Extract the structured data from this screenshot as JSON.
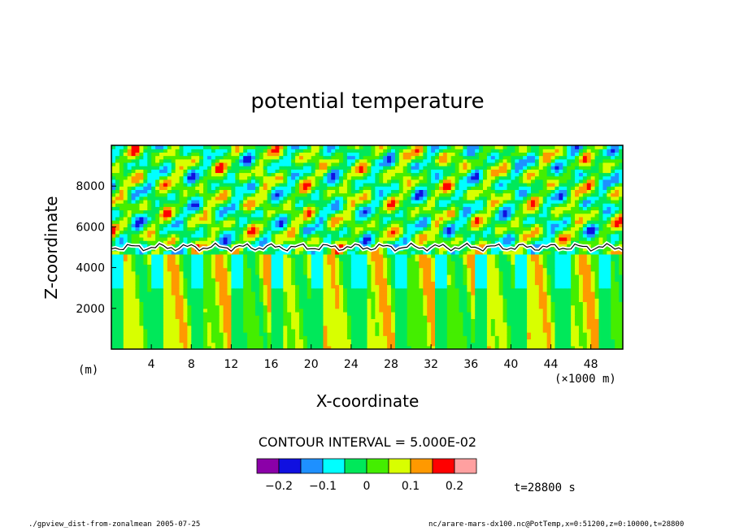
{
  "chart_data": {
    "type": "heatmap",
    "title": "potential temperature",
    "xlabel": "X-coordinate",
    "ylabel": "Z-coordinate",
    "x_unit": "(×1000 m)",
    "y_unit": "(m)",
    "xlim": [
      0,
      51.2
    ],
    "ylim": [
      0,
      10000
    ],
    "x_ticks": [
      4,
      8,
      12,
      16,
      20,
      24,
      28,
      32,
      36,
      40,
      44,
      48
    ],
    "y_ticks": [
      2000,
      4000,
      6000,
      8000
    ],
    "contour_interval": "CONTOUR INTERVAL = 5.000E-02",
    "colorbar": {
      "colors": [
        "#8b00a8",
        "#1010e0",
        "#1e90ff",
        "#00ffff",
        "#00e85a",
        "#44ee00",
        "#d8ff00",
        "#ff9900",
        "#ff0000",
        "#ffa0a0"
      ],
      "tick_labels": [
        "−0.2",
        "−0.1",
        "0",
        "0.1",
        "0.2"
      ]
    },
    "annotations": {
      "time": "t=28800 s",
      "footer_left": "./gpview_dist-from-zonalmean  2005-07-25",
      "footer_right": "nc/arare-mars-dx100.nc@PotTemp,x=0:51200,z=0:10000,t=28800"
    }
  }
}
